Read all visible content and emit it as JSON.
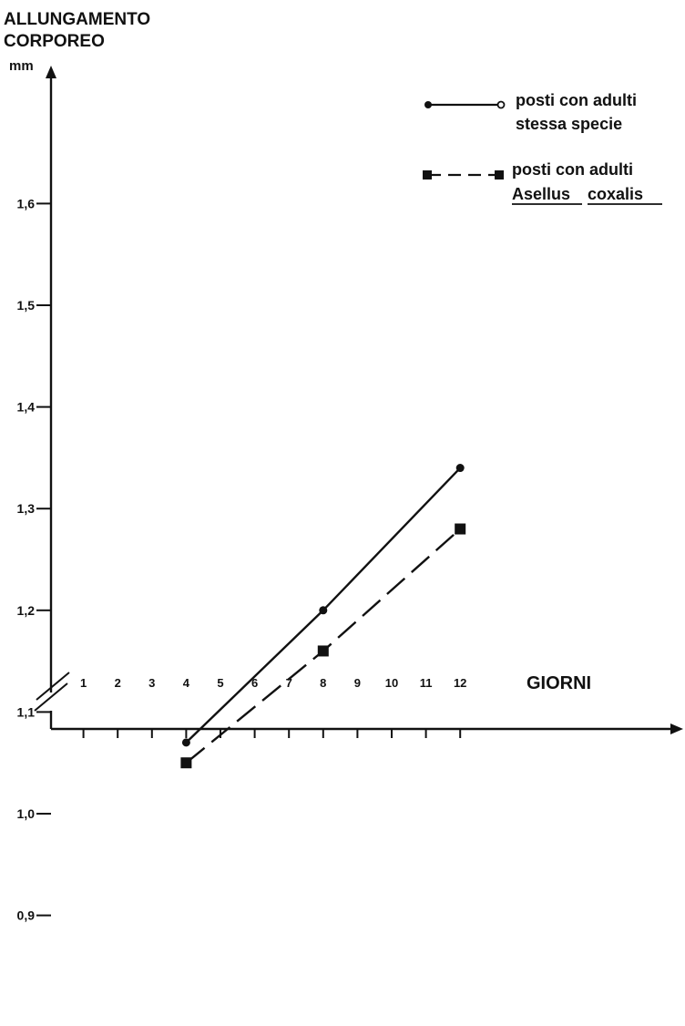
{
  "chart_data": {
    "type": "line",
    "ylabel_line1": "ALLUNGAMENTO",
    "ylabel_line2": "CORPOREO",
    "yunit": "mm",
    "xlabel": "GIORNI",
    "xticks": [
      1,
      2,
      3,
      4,
      5,
      6,
      7,
      8,
      9,
      10,
      11,
      12
    ],
    "xtick_labels": [
      "1",
      "2",
      "3",
      "4",
      "5",
      "6",
      "7",
      "8",
      "9",
      "10",
      "11",
      "12"
    ],
    "yticks": [
      0.9,
      1.0,
      1.1,
      1.2,
      1.3,
      1.4,
      1.5,
      1.6
    ],
    "ytick_labels": [
      "0,9",
      "1,0",
      "1,1",
      "1,2",
      "1,3",
      "1,4",
      "1,5",
      "1,6"
    ],
    "xlim": [
      0,
      13.3
    ],
    "ylim": [
      0.9,
      1.72
    ],
    "axis_break": true,
    "grid": false,
    "legend_position": "top-right",
    "series": [
      {
        "line_style": "solid",
        "marker": "circle",
        "legend_line1": "posti  con adulti",
        "legend_line2": "stessa specie",
        "x": [
          4,
          8,
          12
        ],
        "y": [
          1.07,
          1.2,
          1.34
        ]
      },
      {
        "line_style": "dashed",
        "marker": "square",
        "legend_line1": "posti con adulti",
        "legend_line2a": "Asellus",
        "legend_line2b": "coxalis",
        "x": [
          4,
          8,
          12
        ],
        "y": [
          1.05,
          1.16,
          1.28
        ]
      }
    ],
    "colors": {
      "ink": "#111111",
      "background": "#ffffff"
    }
  }
}
